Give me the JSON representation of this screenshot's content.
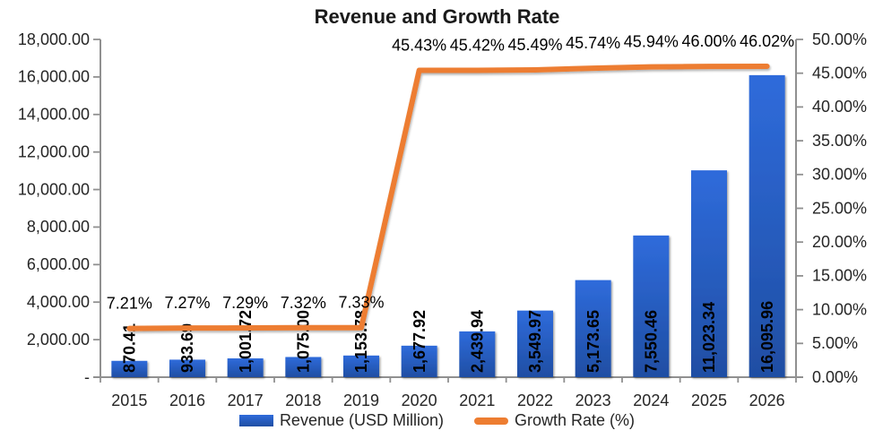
{
  "title": "Revenue and Growth Rate",
  "colors": {
    "bar_top": "#2F6BDB",
    "bar_bottom": "#1F4EA3",
    "line": "#ED7D31",
    "axis": "#909090",
    "axis_text": "#262626",
    "data_label_text": "#000000",
    "background": "#FFFFFF"
  },
  "legend": {
    "revenue_label": "Revenue (USD Million)",
    "growth_label": "Growth Rate (%)"
  },
  "chart_data": {
    "type": "combo-bar-line",
    "title": "Revenue and Growth Rate",
    "categories": [
      "2015",
      "2016",
      "2017",
      "2018",
      "2019",
      "2020",
      "2021",
      "2022",
      "2023",
      "2024",
      "2025",
      "2026"
    ],
    "series": [
      {
        "name": "Revenue (USD Million)",
        "type": "bar",
        "axis": "left",
        "values": [
          870.41,
          933.69,
          1001.72,
          1075.0,
          1153.78,
          1677.92,
          2439.94,
          3549.97,
          5173.65,
          7550.46,
          11023.34,
          16095.96
        ],
        "labels": [
          "870.41",
          "933.69",
          "1,001.72",
          "1,075.00",
          "1,153.78",
          "1,677.92",
          "2,439.94",
          "3,549.97",
          "5,173.65",
          "7,550.46",
          "11,023.34",
          "16,095.96"
        ]
      },
      {
        "name": "Growth Rate (%)",
        "type": "line",
        "axis": "right",
        "values": [
          7.21,
          7.27,
          7.29,
          7.32,
          7.33,
          45.43,
          45.42,
          45.49,
          45.74,
          45.94,
          46.0,
          46.02
        ],
        "labels": [
          "7.21%",
          "7.27%",
          "7.29%",
          "7.32%",
          "7.33%",
          "45.43%",
          "45.42%",
          "45.49%",
          "45.74%",
          "45.94%",
          "46.00%",
          "46.02%"
        ]
      }
    ],
    "left_axis": {
      "min": 0,
      "max": 18000,
      "tick_labels": [
        "-",
        "2,000.00",
        "4,000.00",
        "6,000.00",
        "8,000.00",
        "10,000.00",
        "12,000.00",
        "14,000.00",
        "16,000.00",
        "18,000.00"
      ]
    },
    "right_axis": {
      "min": 0,
      "max": 50,
      "tick_labels": [
        "0.00%",
        "5.00%",
        "10.00%",
        "15.00%",
        "20.00%",
        "25.00%",
        "30.00%",
        "35.00%",
        "40.00%",
        "45.00%",
        "50.00%"
      ]
    },
    "grid": "off",
    "legend_position": "bottom"
  }
}
